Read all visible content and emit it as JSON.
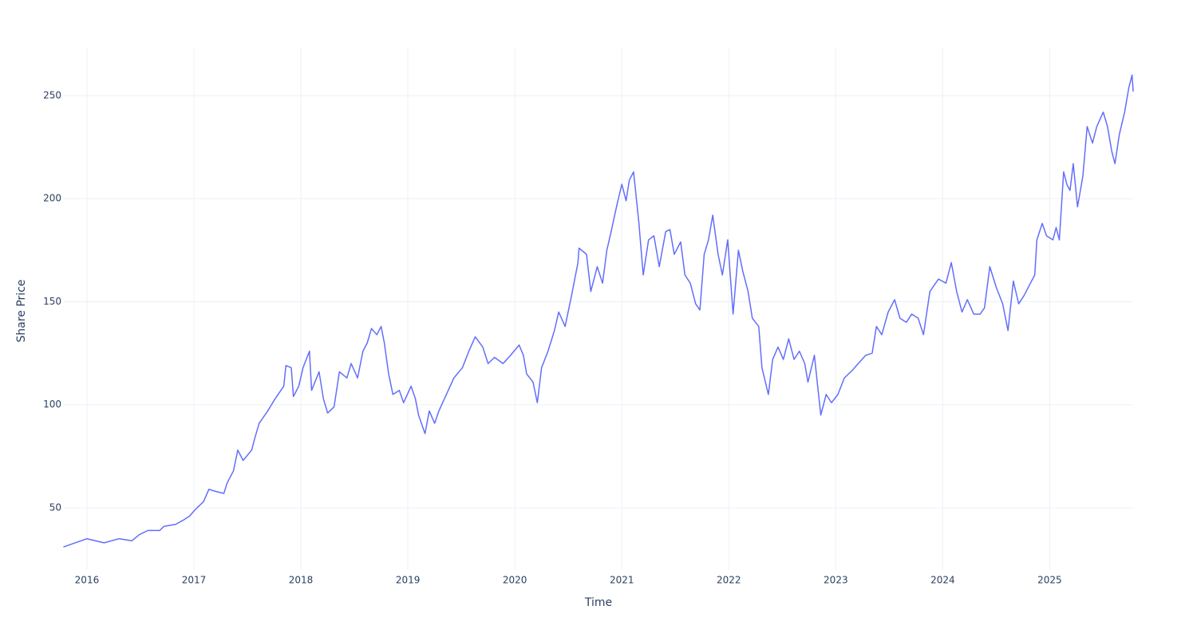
{
  "chart_data": {
    "type": "line",
    "xlabel": "Time",
    "ylabel": "Share Price",
    "color": "#636efa",
    "grid": true,
    "xlim": [
      2015.784,
      2025.78
    ],
    "xticks": [
      2016,
      2017,
      2018,
      2019,
      2020,
      2021,
      2022,
      2023,
      2024,
      2025
    ],
    "ylim": [
      19.8,
      273.2
    ],
    "yticks": [
      50,
      100,
      150,
      200,
      250
    ],
    "x": [
      2015.78,
      2016.0,
      2016.16,
      2016.3,
      2016.42,
      2016.49,
      2016.57,
      2016.68,
      2016.72,
      2016.83,
      2016.9,
      2016.96,
      2017.01,
      2017.09,
      2017.14,
      2017.2,
      2017.28,
      2017.31,
      2017.37,
      2017.41,
      2017.46,
      2017.54,
      2017.57,
      2017.61,
      2017.69,
      2017.76,
      2017.84,
      2017.86,
      2017.91,
      2017.93,
      2017.98,
      2018.02,
      2018.08,
      2018.1,
      2018.17,
      2018.21,
      2018.25,
      2018.31,
      2018.36,
      2018.43,
      2018.47,
      2018.53,
      2018.58,
      2018.62,
      2018.66,
      2018.71,
      2018.75,
      2018.78,
      2018.82,
      2018.86,
      2018.92,
      2018.96,
      2019.03,
      2019.07,
      2019.1,
      2019.16,
      2019.2,
      2019.25,
      2019.29,
      2019.36,
      2019.43,
      2019.51,
      2019.57,
      2019.63,
      2019.7,
      2019.75,
      2019.81,
      2019.89,
      2019.96,
      2020.04,
      2020.08,
      2020.11,
      2020.17,
      2020.21,
      2020.25,
      2020.31,
      2020.37,
      2020.41,
      2020.47,
      2020.53,
      2020.59,
      2020.6,
      2020.67,
      2020.71,
      2020.77,
      2020.82,
      2020.86,
      2020.9,
      2020.95,
      2021.0,
      2021.04,
      2021.07,
      2021.11,
      2021.16,
      2021.2,
      2021.25,
      2021.3,
      2021.35,
      2021.41,
      2021.45,
      2021.49,
      2021.55,
      2021.59,
      2021.64,
      2021.69,
      2021.73,
      2021.77,
      2021.81,
      2021.85,
      2021.9,
      2021.94,
      2021.99,
      2022.04,
      2022.09,
      2022.13,
      2022.18,
      2022.22,
      2022.28,
      2022.31,
      2022.37,
      2022.41,
      2022.46,
      2022.51,
      2022.56,
      2022.61,
      2022.66,
      2022.71,
      2022.74,
      2022.8,
      2022.86,
      2022.91,
      2022.96,
      2023.02,
      2023.08,
      2023.16,
      2023.21,
      2023.28,
      2023.34,
      2023.38,
      2023.43,
      2023.49,
      2023.55,
      2023.6,
      2023.66,
      2023.71,
      2023.77,
      2023.82,
      2023.88,
      2023.96,
      2024.03,
      2024.08,
      2024.13,
      2024.18,
      2024.23,
      2024.29,
      2024.35,
      2024.39,
      2024.44,
      2024.5,
      2024.56,
      2024.61,
      2024.66,
      2024.71,
      2024.76,
      2024.82,
      2024.86,
      2024.88,
      2024.93,
      2024.97,
      2025.03,
      2025.06,
      2025.09,
      2025.13,
      2025.16,
      2025.19,
      2025.22,
      2025.26,
      2025.31,
      2025.35,
      2025.4,
      2025.44,
      2025.5,
      2025.54,
      2025.58,
      2025.61,
      2025.65,
      2025.7,
      2025.74,
      2025.77,
      2025.78
    ],
    "values": [
      31,
      35,
      33,
      35,
      34,
      37,
      39,
      39,
      41,
      42,
      44,
      46,
      49,
      53,
      59,
      58,
      57,
      62,
      68,
      78,
      73,
      78,
      84,
      91,
      97,
      103,
      109,
      119,
      118,
      104,
      109,
      118,
      126,
      107,
      116,
      103,
      96,
      99,
      116,
      113,
      120,
      113,
      126,
      130,
      137,
      134,
      138,
      130,
      115,
      105,
      107,
      101,
      109,
      103,
      95,
      86,
      97,
      91,
      97,
      105,
      113,
      118,
      126,
      133,
      128,
      120,
      123,
      120,
      124,
      129,
      124,
      115,
      111,
      101,
      118,
      126,
      136,
      145,
      138,
      153,
      169,
      176,
      173,
      155,
      167,
      159,
      175,
      184,
      196,
      207,
      199,
      209,
      213,
      188,
      163,
      180,
      182,
      167,
      184,
      185,
      173,
      179,
      163,
      159,
      149,
      146,
      173,
      180,
      192,
      173,
      163,
      180,
      144,
      175,
      165,
      155,
      142,
      138,
      118,
      105,
      122,
      128,
      122,
      132,
      122,
      126,
      120,
      111,
      124,
      95,
      105,
      101,
      105,
      113,
      117,
      120,
      124,
      125,
      138,
      134,
      145,
      151,
      142,
      140,
      144,
      142,
      134,
      155,
      161,
      159,
      169,
      155,
      145,
      151,
      144,
      144,
      147,
      167,
      157,
      149,
      136,
      160,
      149,
      153,
      159,
      163,
      180,
      188,
      182,
      180,
      186,
      180,
      213,
      207,
      204,
      217,
      196,
      211,
      235,
      227,
      235,
      242,
      235,
      223,
      217,
      231,
      242,
      254,
      260,
      252
    ]
  }
}
